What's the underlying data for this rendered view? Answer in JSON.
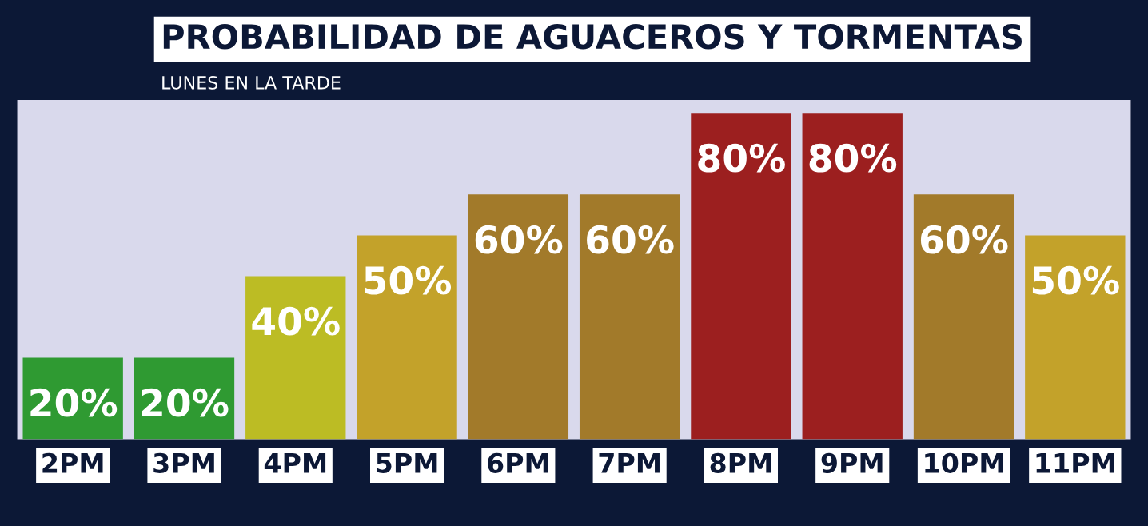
{
  "chart_data": {
    "type": "bar",
    "title": "PROBABILIDAD DE AGUACEROS Y TORMENTAS",
    "subtitle": "LUNES EN LA TARDE",
    "categories": [
      "2PM",
      "3PM",
      "4PM",
      "5PM",
      "6PM",
      "7PM",
      "8PM",
      "9PM",
      "10PM",
      "11PM"
    ],
    "values": [
      20,
      20,
      40,
      50,
      60,
      60,
      80,
      80,
      60,
      50
    ],
    "colors": [
      "#2f9a32",
      "#2f9a32",
      "#bcbc24",
      "#c3a22a",
      "#a27a2a",
      "#a27a2a",
      "#9c1f1f",
      "#9c1f1f",
      "#a27a2a",
      "#c3a22a"
    ],
    "value_labels": [
      "20%",
      "20%",
      "40%",
      "50%",
      "60%",
      "60%",
      "80%",
      "80%",
      "60%",
      "50%"
    ],
    "grid": false,
    "legend": false
  }
}
